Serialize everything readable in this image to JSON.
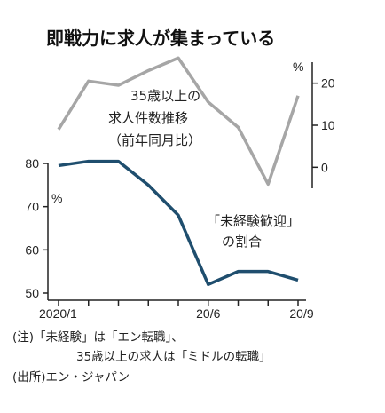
{
  "chart_data": {
    "type": "line",
    "title": "即戦力に求人が集まっている",
    "x_tick_labels": [
      "2020/1",
      "20/6",
      "20/9"
    ],
    "series": [
      {
        "label_lines": [
          "35歳以上の",
          "求人件数推移",
          "（前年同月比）"
        ],
        "unit": "%",
        "axis": "right",
        "yticks": [
          0,
          10,
          20
        ],
        "ylim": [
          -5,
          25
        ],
        "color": "#a6a6a6",
        "x_index": [
          0,
          1,
          2,
          3,
          4,
          5,
          6,
          7,
          8
        ],
        "values": [
          9,
          20.5,
          19.5,
          23,
          26,
          15.5,
          9.5,
          -4,
          17
        ]
      },
      {
        "label_lines": [
          "「未経験歓迎」",
          "の割合"
        ],
        "unit": "%",
        "axis": "left",
        "yticks": [
          50,
          60,
          70,
          80
        ],
        "ylim": [
          50,
          80
        ],
        "color": "#1f4e6e",
        "x_index": [
          0,
          1,
          2,
          3,
          4,
          5,
          6,
          7,
          8
        ],
        "values": [
          79.5,
          80.5,
          80.5,
          75,
          68,
          52,
          55,
          55,
          53
        ]
      }
    ]
  },
  "notes": [
    "(注)「未経験」は「エン転職」、",
    "35歳以上の求人は「ミドルの転職」",
    "(出所)エン・ジャパン"
  ]
}
